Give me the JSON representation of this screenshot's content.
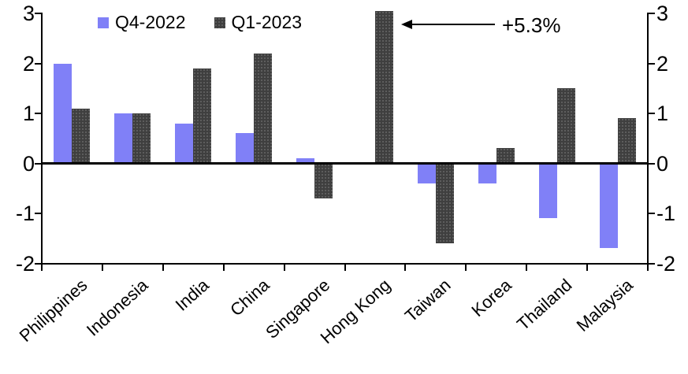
{
  "chart_data": {
    "type": "bar",
    "title": "",
    "xlabel": "",
    "ylabel": "",
    "categories": [
      "Philippines",
      "Indonesia",
      "India",
      "China",
      "Singapore",
      "Hong Kong",
      "Taiwan",
      "Korea",
      "Thailand",
      "Malaysia"
    ],
    "series": [
      {
        "name": "Q4-2022",
        "color": "#8080F7",
        "values": [
          2.0,
          1.0,
          0.8,
          0.6,
          0.1,
          null,
          -0.4,
          -0.4,
          -1.1,
          -1.7
        ]
      },
      {
        "name": "Q1-2023",
        "color": "#3F3F3F",
        "values": [
          1.1,
          1.0,
          1.9,
          2.2,
          -0.7,
          5.3,
          -1.6,
          0.3,
          1.5,
          0.9
        ]
      }
    ],
    "ylim": [
      -2,
      3
    ],
    "yticks": [
      3,
      2,
      1,
      0,
      -1,
      -2
    ],
    "y_axis_sides": "both",
    "grid": false,
    "legend_position": "top-left-inside",
    "clip_max": 3,
    "annotation": {
      "text": "+5.3%",
      "target_category": "Hong Kong",
      "target_series": "Q1-2023",
      "reason": "bar clipped at axis maximum"
    }
  }
}
